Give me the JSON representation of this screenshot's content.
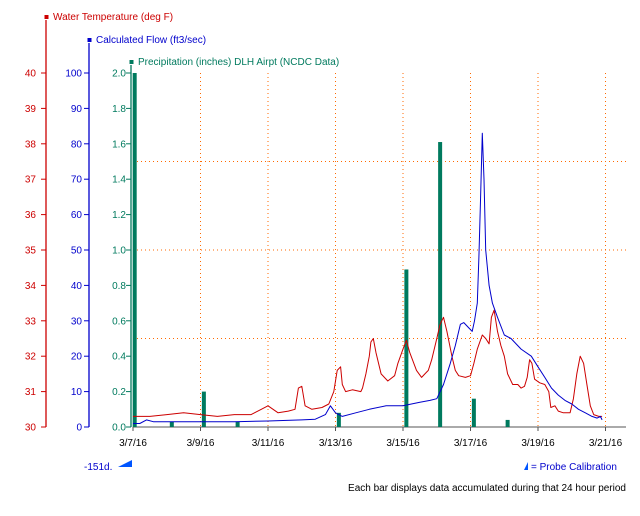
{
  "chart_data": {
    "type": "line",
    "x_axis": {
      "tick_labels": [
        "3/7/16",
        "3/9/16",
        "3/11/16",
        "3/13/16",
        "3/15/16",
        "3/17/16",
        "3/19/16",
        "3/21/16"
      ],
      "range_days": [
        0,
        15
      ]
    },
    "axes": {
      "temperature": {
        "title": "Water Temperature (deg F)",
        "color": "#cc0000",
        "ylim": [
          30,
          40
        ],
        "ticks": [
          30,
          31,
          32,
          33,
          34,
          35,
          36,
          37,
          38,
          39,
          40
        ]
      },
      "flow": {
        "title": "Calculated Flow (ft3/sec)",
        "color": "#0000cc",
        "ylim": [
          0,
          100
        ],
        "ticks": [
          0,
          10,
          20,
          30,
          40,
          50,
          60,
          70,
          80,
          90,
          100
        ]
      },
      "precipitation": {
        "title": "Precipitation (inches)  DLH Airpt (NCDC Data)",
        "color": "#007a5e",
        "ylim": [
          0,
          2.0
        ],
        "ticks": [
          "0.0",
          "0.2",
          "0.4",
          "0.6",
          "0.8",
          "1.0",
          "1.2",
          "1.4",
          "1.6",
          "1.8",
          "2.0"
        ]
      }
    },
    "series": [
      {
        "name": "Water Temperature (deg F)",
        "axis": "temperature",
        "color": "#cc0000",
        "points": [
          [
            0.0,
            30.3
          ],
          [
            0.5,
            30.3
          ],
          [
            1.0,
            30.35
          ],
          [
            1.5,
            30.4
          ],
          [
            2.0,
            30.35
          ],
          [
            2.5,
            30.3
          ],
          [
            3.0,
            30.35
          ],
          [
            3.5,
            30.35
          ],
          [
            3.8,
            30.5
          ],
          [
            4.0,
            30.6
          ],
          [
            4.3,
            30.4
          ],
          [
            4.6,
            30.45
          ],
          [
            4.8,
            30.5
          ],
          [
            4.9,
            31.1
          ],
          [
            5.0,
            31.15
          ],
          [
            5.1,
            30.6
          ],
          [
            5.3,
            30.5
          ],
          [
            5.6,
            30.55
          ],
          [
            5.8,
            30.65
          ],
          [
            5.95,
            31.0
          ],
          [
            6.05,
            31.6
          ],
          [
            6.15,
            31.7
          ],
          [
            6.2,
            31.2
          ],
          [
            6.3,
            31.0
          ],
          [
            6.5,
            31.05
          ],
          [
            6.75,
            31.0
          ],
          [
            6.8,
            31.1
          ],
          [
            6.9,
            31.5
          ],
          [
            7.0,
            32.0
          ],
          [
            7.05,
            32.4
          ],
          [
            7.12,
            32.5
          ],
          [
            7.2,
            32.1
          ],
          [
            7.35,
            31.5
          ],
          [
            7.55,
            31.3
          ],
          [
            7.75,
            31.45
          ],
          [
            7.85,
            31.8
          ],
          [
            8.0,
            32.2
          ],
          [
            8.1,
            32.45
          ],
          [
            8.2,
            32.1
          ],
          [
            8.4,
            31.6
          ],
          [
            8.55,
            31.4
          ],
          [
            8.65,
            31.5
          ],
          [
            8.75,
            31.6
          ],
          [
            8.85,
            31.9
          ],
          [
            9.0,
            32.5
          ],
          [
            9.1,
            32.9
          ],
          [
            9.2,
            33.1
          ],
          [
            9.3,
            32.7
          ],
          [
            9.45,
            32.0
          ],
          [
            9.55,
            31.6
          ],
          [
            9.65,
            31.45
          ],
          [
            9.85,
            31.4
          ],
          [
            10.0,
            31.45
          ],
          [
            10.1,
            31.8
          ],
          [
            10.2,
            32.2
          ],
          [
            10.35,
            32.6
          ],
          [
            10.45,
            32.5
          ],
          [
            10.55,
            32.35
          ],
          [
            10.62,
            33.1
          ],
          [
            10.7,
            33.3
          ],
          [
            10.8,
            32.7
          ],
          [
            10.9,
            32.3
          ],
          [
            11.0,
            32.0
          ],
          [
            11.1,
            31.5
          ],
          [
            11.25,
            31.2
          ],
          [
            11.4,
            31.2
          ],
          [
            11.5,
            31.1
          ],
          [
            11.6,
            31.15
          ],
          [
            11.68,
            31.4
          ],
          [
            11.75,
            31.9
          ],
          [
            11.82,
            31.8
          ],
          [
            11.9,
            31.35
          ],
          [
            12.05,
            31.25
          ],
          [
            12.2,
            31.2
          ],
          [
            12.32,
            31.0
          ],
          [
            12.38,
            30.55
          ],
          [
            12.5,
            30.6
          ],
          [
            12.6,
            30.45
          ],
          [
            12.75,
            30.4
          ],
          [
            12.95,
            30.4
          ],
          [
            13.05,
            30.8
          ],
          [
            13.15,
            31.5
          ],
          [
            13.25,
            32.0
          ],
          [
            13.35,
            31.8
          ],
          [
            13.45,
            31.2
          ],
          [
            13.55,
            30.6
          ],
          [
            13.65,
            30.35
          ],
          [
            13.8,
            30.3
          ],
          [
            13.9,
            30.3
          ]
        ]
      },
      {
        "name": "Calculated Flow (ft3/sec)",
        "axis": "flow",
        "color": "#0000cc",
        "points": [
          [
            0.0,
            1.0
          ],
          [
            0.2,
            1.0
          ],
          [
            0.4,
            2.0
          ],
          [
            0.6,
            1.5
          ],
          [
            1.0,
            1.5
          ],
          [
            2.0,
            1.5
          ],
          [
            3.0,
            1.5
          ],
          [
            4.0,
            1.7
          ],
          [
            5.0,
            2.0
          ],
          [
            5.4,
            2.2
          ],
          [
            5.7,
            3.5
          ],
          [
            5.85,
            6.0
          ],
          [
            6.0,
            4.0
          ],
          [
            6.2,
            3.0
          ],
          [
            6.6,
            4.0
          ],
          [
            7.0,
            5.0
          ],
          [
            7.5,
            6.0
          ],
          [
            8.0,
            6.0
          ],
          [
            8.5,
            7.0
          ],
          [
            8.8,
            7.5
          ],
          [
            9.0,
            8.0
          ],
          [
            9.2,
            12.0
          ],
          [
            9.4,
            18.0
          ],
          [
            9.55,
            23.0
          ],
          [
            9.7,
            29.0
          ],
          [
            9.8,
            29.5
          ],
          [
            9.95,
            28.0
          ],
          [
            10.05,
            27.0
          ],
          [
            10.12,
            30.0
          ],
          [
            10.2,
            35.0
          ],
          [
            10.25,
            48.0
          ],
          [
            10.3,
            65.0
          ],
          [
            10.35,
            83.0
          ],
          [
            10.4,
            70.0
          ],
          [
            10.45,
            50.0
          ],
          [
            10.55,
            40.0
          ],
          [
            10.65,
            35.0
          ],
          [
            10.8,
            31.0
          ],
          [
            11.0,
            26.0
          ],
          [
            11.2,
            25.0
          ],
          [
            11.5,
            22.0
          ],
          [
            11.8,
            20.0
          ],
          [
            12.0,
            17.0
          ],
          [
            12.2,
            14.0
          ],
          [
            12.4,
            11.0
          ],
          [
            12.6,
            9.0
          ],
          [
            12.8,
            7.5
          ],
          [
            13.0,
            6.5
          ],
          [
            13.2,
            5.0
          ],
          [
            13.4,
            4.0
          ],
          [
            13.6,
            3.0
          ],
          [
            13.75,
            2.5
          ],
          [
            13.85,
            3.0
          ],
          [
            13.9,
            2.0
          ]
        ]
      },
      {
        "name": "Precipitation (inches)  DLH Airpt (NCDC Data)",
        "axis": "precipitation",
        "type": "bar",
        "color": "#007a5e",
        "bars": [
          [
            0.05,
            2.0
          ],
          [
            1.15,
            0.03
          ],
          [
            2.1,
            0.2
          ],
          [
            3.1,
            0.03
          ],
          [
            6.1,
            0.08
          ],
          [
            8.1,
            0.89
          ],
          [
            9.1,
            1.61
          ],
          [
            10.1,
            0.16
          ],
          [
            11.1,
            0.04
          ]
        ]
      }
    ]
  },
  "annotations": {
    "left_marker": "-151d.",
    "legend_probe": "= Probe Calibration",
    "footer_note": "Each bar displays data accumulated during that 24 hour period"
  }
}
